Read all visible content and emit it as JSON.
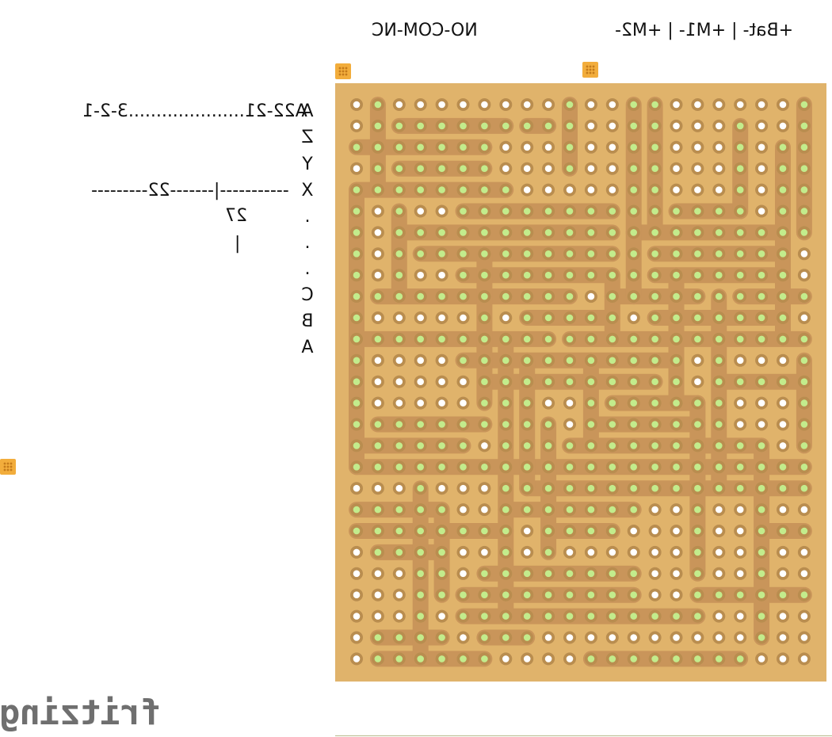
{
  "labels": {
    "relay_pins": "NO-COM-NC",
    "power_pins": "+Bat- | +M1- | +M2-",
    "pin_range": "A22-21.....................3-2-1",
    "divider": "-----------|-------22---------",
    "number_27": "27",
    "bar": "|"
  },
  "row_labels": [
    "A",
    "Z",
    "Y",
    "X",
    ".",
    ".",
    ".",
    "C",
    "B",
    "A"
  ],
  "logo": "fritzing",
  "colors": {
    "board": "#e0b36b",
    "strip": "#c9955a",
    "pad_ring": "#b98d4f",
    "hole_connected": "#c3ec8c",
    "hole_open": "#ffffff",
    "marker": "#f2ad3c"
  }
}
